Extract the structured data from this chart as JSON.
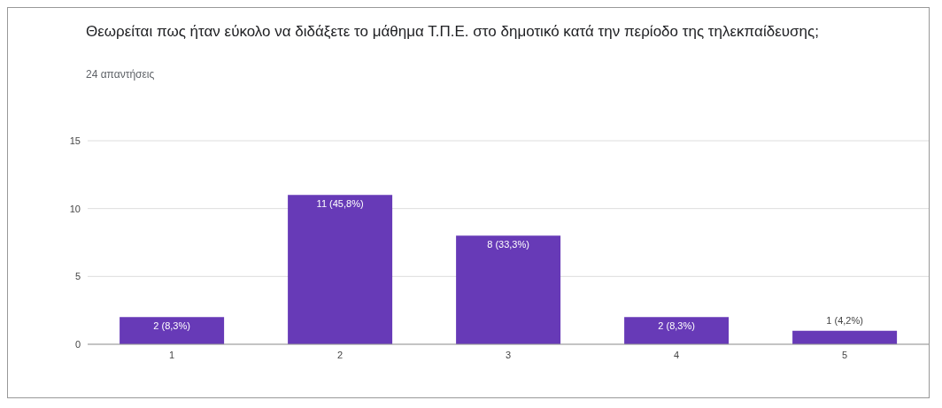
{
  "chart_data": {
    "type": "bar",
    "title": "Θεωρείται πως ήταν εύκολο να διδάξετε το μάθημα Τ.Π.Ε. στο δημοτικό κατά την περίοδο της τηλεκπαίδευσης;",
    "subtitle": "24 απαντήσεις",
    "categories": [
      "1",
      "2",
      "3",
      "4",
      "5"
    ],
    "values": [
      2,
      11,
      8,
      2,
      1
    ],
    "value_labels": [
      "2 (8,3%)",
      "11 (45,8%)",
      "8 (33,3%)",
      "2 (8,3%)",
      "1 (4,2%)"
    ],
    "color": "#673ab7",
    "ylim": [
      0,
      15
    ],
    "yticks": [
      0,
      5,
      10,
      15
    ],
    "grid": "y"
  }
}
